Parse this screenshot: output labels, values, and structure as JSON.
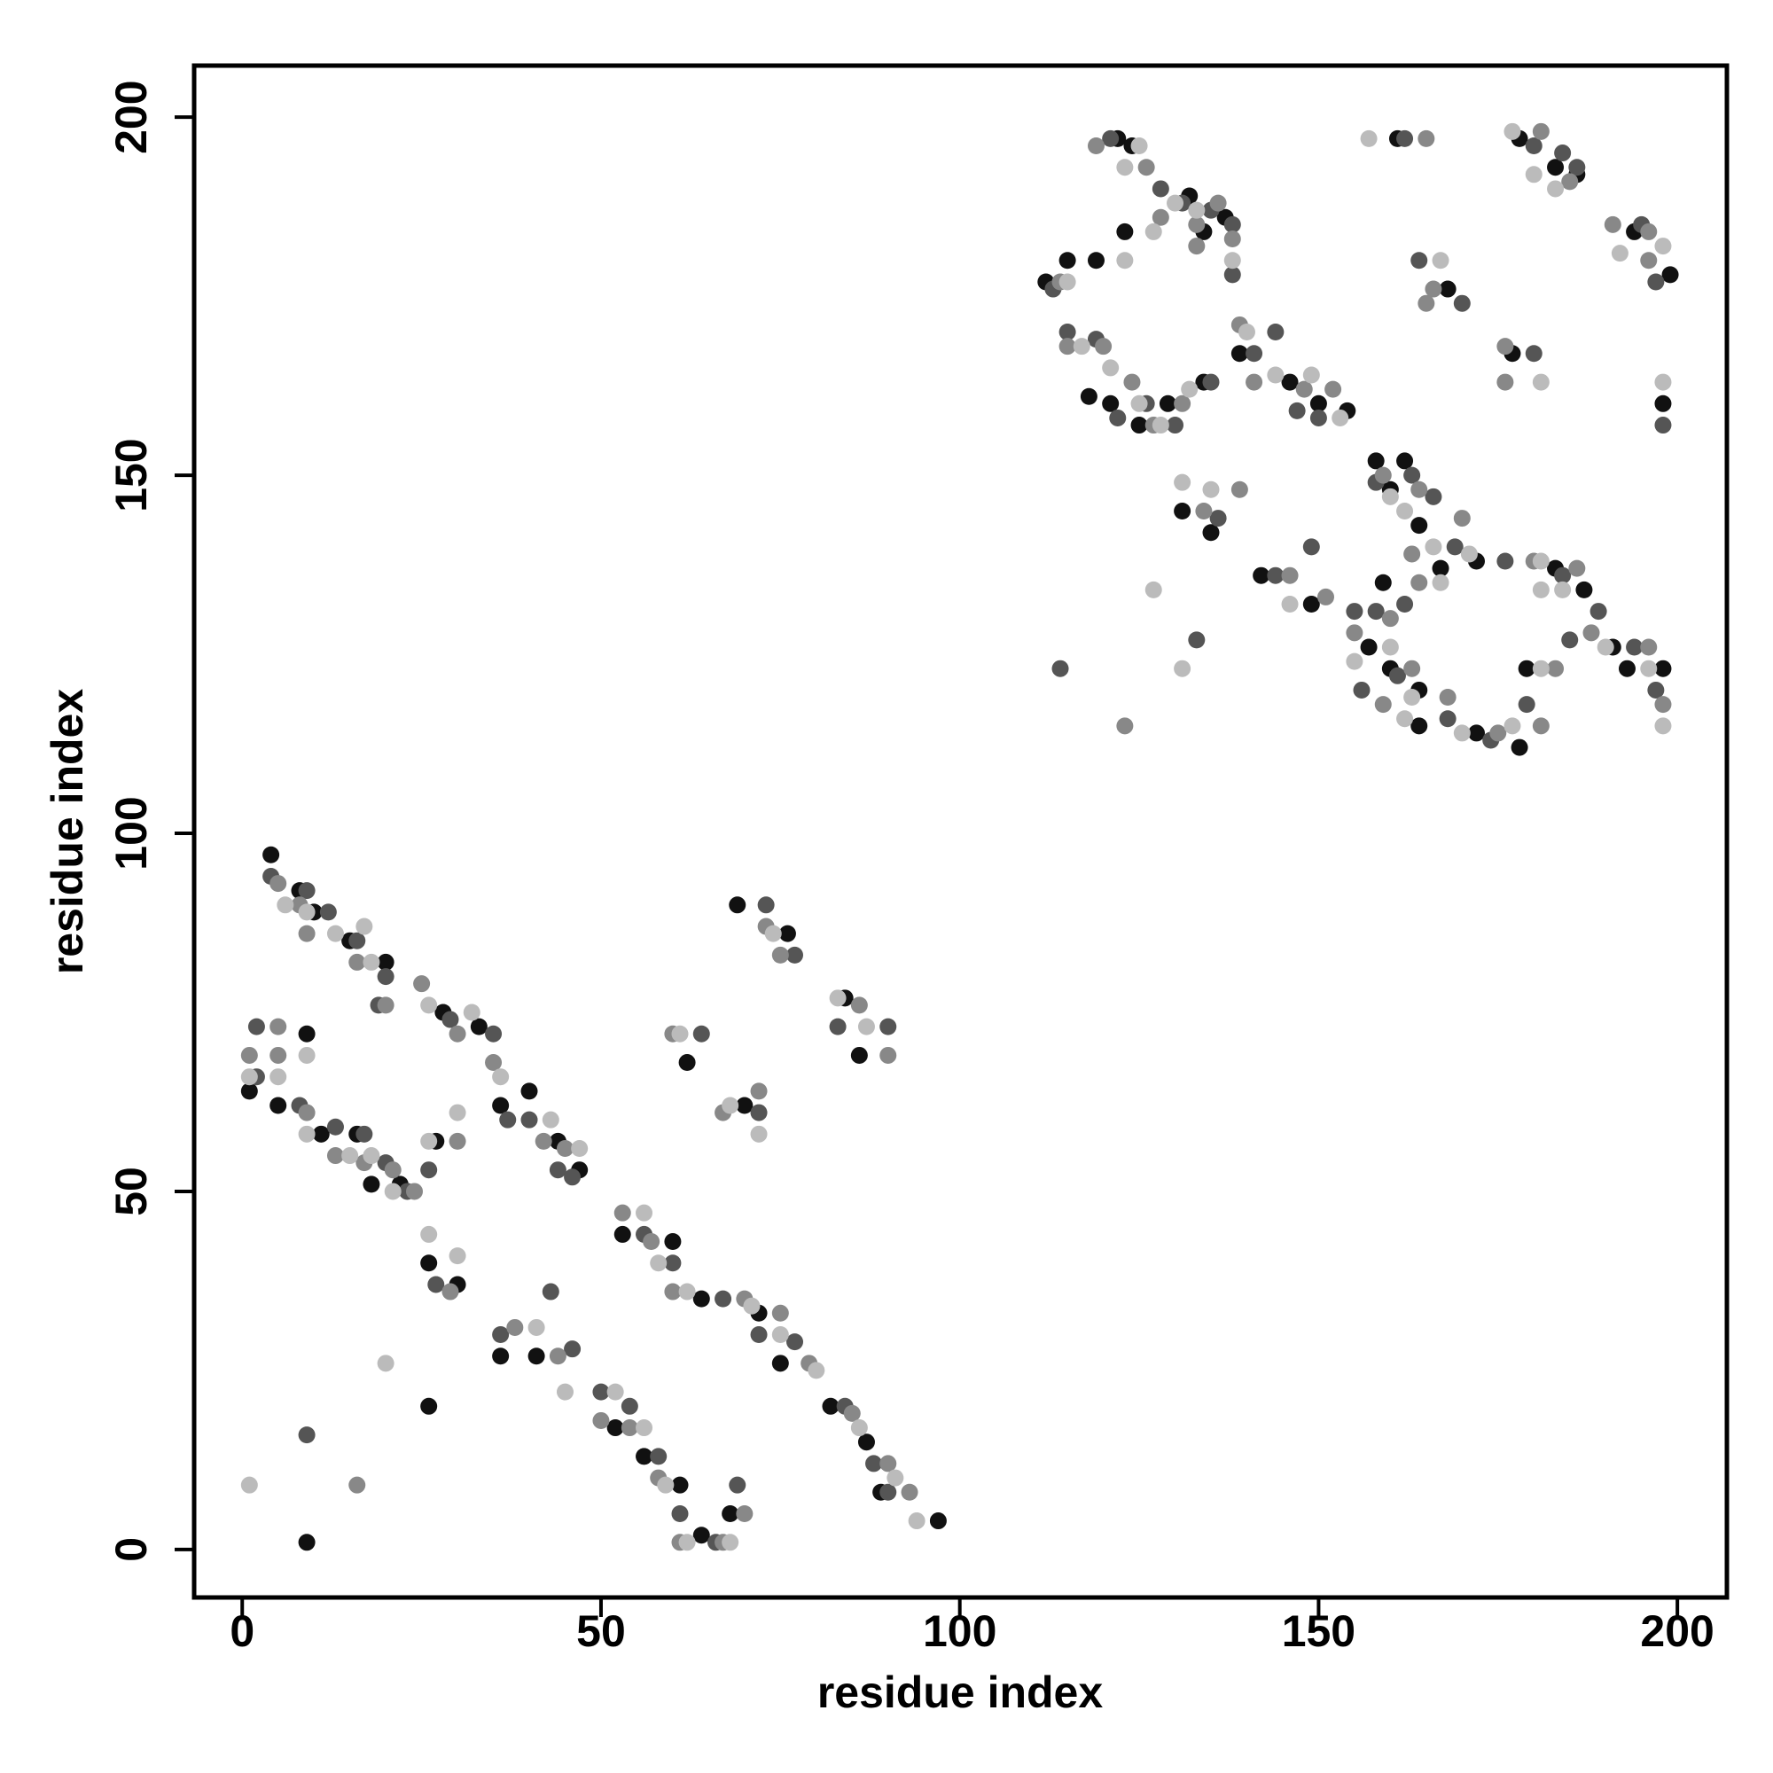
{
  "chart_data": {
    "type": "scatter",
    "xlabel": "residue index",
    "ylabel": "residue index",
    "xlim": [
      -6.7,
      206.9
    ],
    "ylim": [
      -6.7,
      207.2
    ],
    "xticks": [
      0,
      50,
      100,
      150,
      200
    ],
    "yticks": [
      0,
      50,
      100,
      150,
      200
    ],
    "grid": false,
    "series": [
      {
        "color": "#111111",
        "x": [
          4,
          8,
          10,
          15,
          20,
          28,
          33,
          36,
          1,
          5,
          11,
          16,
          18,
          22,
          27,
          40,
          44,
          47,
          53,
          60,
          64,
          72,
          75,
          82,
          87,
          89,
          97,
          52,
          56,
          61,
          64,
          68,
          26,
          30,
          41,
          36,
          62,
          70,
          69,
          76,
          84,
          86,
          26,
          9,
          9,
          112,
          115,
          118,
          121,
          125,
          129,
          134,
          134,
          132,
          122,
          124,
          123,
          137,
          139,
          146,
          150,
          154,
          119,
          131,
          135,
          142,
          149,
          158,
          162,
          164,
          167,
          172,
          157,
          160,
          164,
          164,
          172,
          178,
          179,
          183,
          187,
          191,
          198,
          193,
          159,
          160,
          168,
          161,
          178,
          183,
          186,
          194,
          199,
          198,
          177
        ],
        "values": [
          97,
          92,
          89,
          85,
          82,
          75,
          73,
          62,
          64,
          62,
          58,
          58,
          51,
          51,
          57,
          64,
          57,
          53,
          44,
          43,
          35,
          33,
          26,
          20,
          15,
          8,
          4,
          17,
          13,
          9,
          2,
          5,
          40,
          37,
          27,
          27,
          68,
          62,
          90,
          86,
          77,
          69,
          20,
          1,
          72,
          177,
          180,
          161,
          160,
          157,
          160,
          163,
          184,
          189,
          197,
          196,
          184,
          186,
          167,
          163,
          160,
          159,
          180,
          145,
          142,
          136,
          132,
          152,
          152,
          143,
          137,
          138,
          126,
          123,
          120,
          115,
          114,
          112,
          123,
          137,
          134,
          126,
          123,
          123,
          135,
          148,
          176,
          197,
          197,
          193,
          192,
          184,
          178,
          160,
          167
        ]
      },
      {
        "color": "#555555",
        "x": [
          4,
          9,
          12,
          16,
          20,
          29,
          35,
          37,
          2,
          8,
          13,
          17,
          20,
          23,
          26,
          40,
          44,
          46,
          56,
          60,
          67,
          72,
          77,
          84,
          88,
          90,
          50,
          54,
          58,
          61,
          66,
          69,
          27,
          36,
          43,
          46,
          64,
          72,
          73,
          77,
          83,
          90,
          9,
          2,
          19,
          113,
          115,
          119,
          122,
          126,
          130,
          135,
          135,
          128,
          121,
          131,
          138,
          138,
          141,
          147,
          150,
          144,
          114,
          133,
          136,
          144,
          149,
          158,
          163,
          166,
          169,
          155,
          158,
          161,
          156,
          168,
          174,
          179,
          176,
          184,
          189,
          194,
          197,
          185,
          162,
          164,
          170,
          162,
          180,
          184,
          186,
          195,
          197,
          198,
          180
        ],
        "values": [
          94,
          92,
          89,
          85,
          80,
          74,
          72,
          60,
          66,
          62,
          59,
          58,
          54,
          50,
          53,
          60,
          53,
          52,
          44,
          40,
          35,
          30,
          29,
          20,
          12,
          8,
          22,
          20,
          13,
          5,
          1,
          9,
          37,
          30,
          36,
          28,
          72,
          61,
          90,
          83,
          73,
          73,
          16,
          73,
          76,
          176,
          170,
          169,
          158,
          160,
          157,
          163,
          187,
          190,
          197,
          188,
          185,
          178,
          167,
          159,
          158,
          170,
          123,
          127,
          144,
          136,
          140,
          149,
          150,
          147,
          140,
          131,
          131,
          122,
          120,
          116,
          113,
          118,
          138,
          136,
          131,
          126,
          120,
          127,
          132,
          180,
          174,
          197,
          196,
          195,
          193,
          185,
          177,
          157,
          167
        ]
      },
      {
        "color": "#888888",
        "x": [
          5,
          8,
          9,
          16,
          25,
          30,
          35,
          1,
          5,
          9,
          13,
          17,
          21,
          24,
          30,
          42,
          45,
          53,
          57,
          60,
          70,
          75,
          79,
          85,
          90,
          93,
          50,
          54,
          58,
          61,
          67,
          70,
          29,
          38,
          44,
          60,
          67,
          72,
          73,
          75,
          86,
          90,
          16,
          5,
          20,
          114,
          115,
          120,
          124,
          127,
          131,
          133,
          136,
          126,
          119,
          128,
          138,
          139,
          141,
          148,
          152,
          133,
          123,
          134,
          139,
          146,
          151,
          159,
          164,
          163,
          170,
          155,
          160,
          163,
          159,
          168,
          175,
          181,
          180,
          186,
          188,
          196,
          198,
          183,
          164,
          166,
          165,
          165,
          181,
          185,
          191,
          196,
          196,
          176,
          176
        ],
        "values": [
          93,
          90,
          86,
          82,
          79,
          72,
          68,
          69,
          69,
          61,
          55,
          54,
          53,
          50,
          57,
          57,
          56,
          47,
          43,
          36,
          35,
          33,
          26,
          19,
          12,
          8,
          18,
          17,
          10,
          1,
          1,
          5,
          36,
          31,
          27,
          72,
          61,
          64,
          87,
          83,
          76,
          69,
          9,
          73,
          76,
          177,
          168,
          168,
          163,
          157,
          160,
          185,
          188,
          193,
          196,
          186,
          183,
          171,
          163,
          162,
          162,
          182,
          115,
          145,
          148,
          136,
          133,
          150,
          148,
          139,
          144,
          128,
          130,
          123,
          118,
          119,
          114,
          115,
          138,
          137,
          128,
          126,
          118,
          123,
          135,
          176,
          174,
          197,
          198,
          191,
          185,
          180,
          184,
          163,
          168
        ]
      },
      {
        "color": "#bbbbbb",
        "x": [
          6,
          9,
          13,
          18,
          26,
          32,
          36,
          1,
          5,
          9,
          15,
          18,
          21,
          26,
          30,
          43,
          47,
          56,
          58,
          62,
          71,
          75,
          80,
          86,
          91,
          94,
          52,
          56,
          59,
          62,
          68,
          26,
          30,
          41,
          45,
          61,
          68,
          72,
          74,
          83,
          87,
          20,
          1,
          9,
          17,
          115,
          117,
          121,
          125,
          128,
          132,
          133,
          130,
          125,
          123,
          127,
          138,
          140,
          144,
          149,
          153,
          123,
          127,
          135,
          131,
          146,
          131,
          160,
          162,
          166,
          171,
          155,
          160,
          163,
          162,
          170,
          177,
          181,
          181,
          184,
          190,
          196,
          198,
          181,
          167,
          167,
          157,
          177,
          180,
          183,
          192,
          198,
          198,
          181
        ],
        "values": [
          90,
          89,
          86,
          82,
          76,
          75,
          66,
          66,
          66,
          58,
          55,
          55,
          50,
          57,
          61,
          60,
          56,
          47,
          40,
          36,
          34,
          30,
          25,
          17,
          10,
          4,
          22,
          17,
          9,
          1,
          1,
          44,
          41,
          31,
          22,
          72,
          62,
          58,
          86,
          77,
          73,
          26,
          9,
          69,
          87,
          177,
          168,
          165,
          160,
          157,
          162,
          187,
          188,
          196,
          193,
          184,
          180,
          170,
          164,
          164,
          158,
          180,
          134,
          148,
          149,
          132,
          123,
          147,
          145,
          140,
          139,
          124,
          126,
          119,
          116,
          114,
          115,
          123,
          138,
          134,
          126,
          123,
          115,
          134,
          135,
          180,
          197,
          198,
          192,
          190,
          181,
          182,
          163,
          163
        ]
      }
    ]
  }
}
